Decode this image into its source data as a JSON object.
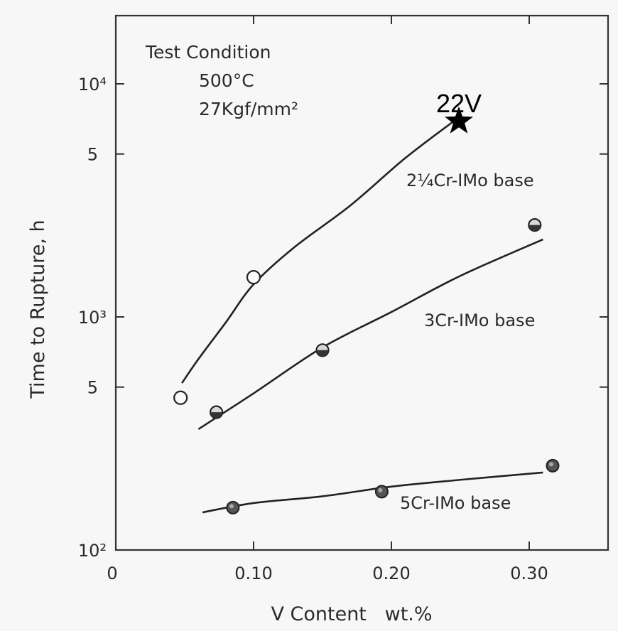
{
  "chart_data": {
    "type": "scatter",
    "xlabel": "V Content   wt.%",
    "ylabel": "Time to Rupture, h",
    "xlim": [
      0,
      0.36
    ],
    "ylim": [
      100,
      20000
    ],
    "yscale": "log",
    "grid": false,
    "x_ticks": [
      "0",
      "0.10",
      "0.20",
      "0.30"
    ],
    "y_ticks": [
      "10²",
      "5",
      "10³",
      "5",
      "10⁴"
    ],
    "condition": [
      "Test Condition",
      "500°C",
      "27Kgf/mm²"
    ],
    "series": [
      {
        "name": "2¼Cr-IMo base",
        "marker": "open-circle",
        "points": [
          [
            0.047,
            450
          ],
          [
            0.1,
            1480
          ]
        ],
        "curve": [
          [
            0.048,
            520
          ],
          [
            0.06,
            660
          ],
          [
            0.08,
            950
          ],
          [
            0.1,
            1380
          ],
          [
            0.13,
            2000
          ],
          [
            0.17,
            3000
          ],
          [
            0.21,
            4800
          ],
          [
            0.245,
            6900
          ]
        ]
      },
      {
        "name": "3Cr-IMo base",
        "marker": "half-circle",
        "points": [
          [
            0.073,
            390
          ],
          [
            0.15,
            720
          ],
          [
            0.304,
            2480
          ]
        ],
        "curve": [
          [
            0.06,
            330
          ],
          [
            0.1,
            470
          ],
          [
            0.15,
            740
          ],
          [
            0.2,
            1050
          ],
          [
            0.25,
            1500
          ],
          [
            0.31,
            2150
          ]
        ]
      },
      {
        "name": "5Cr-IMo base",
        "marker": "filled-circle",
        "points": [
          [
            0.085,
            152
          ],
          [
            0.193,
            178
          ],
          [
            0.317,
            230
          ]
        ],
        "curve": [
          [
            0.063,
            145
          ],
          [
            0.1,
            159
          ],
          [
            0.15,
            170
          ],
          [
            0.2,
            187
          ],
          [
            0.25,
            200
          ],
          [
            0.31,
            215
          ]
        ]
      }
    ],
    "annotation": {
      "label": "22V",
      "x": 0.25,
      "y": 7000,
      "marker": "star"
    }
  }
}
